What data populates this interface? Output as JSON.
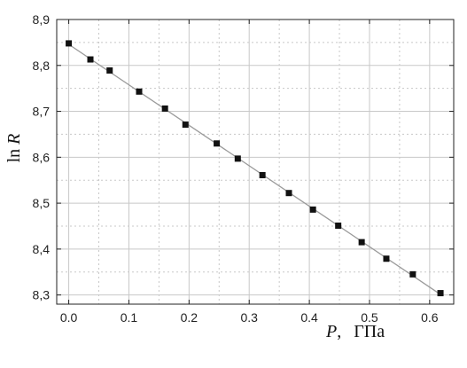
{
  "chart_data": {
    "type": "scatter",
    "title": "",
    "xlabel_var": "P",
    "xlabel_sep": ",",
    "xlabel_unit": "ГПа",
    "ylabel_prefix": "ln ",
    "ylabel_var": "R",
    "xlim": [
      -0.02,
      0.64
    ],
    "ylim": [
      8.28,
      8.9
    ],
    "x_ticks": [
      0.0,
      0.1,
      0.2,
      0.3,
      0.4,
      0.5,
      0.6
    ],
    "x_tick_labels": [
      "0.0",
      "0.1",
      "0.2",
      "0.3",
      "0.4",
      "0.5",
      "0.6"
    ],
    "y_ticks": [
      8.3,
      8.4,
      8.5,
      8.6,
      8.7,
      8.8,
      8.9
    ],
    "y_tick_labels": [
      "8,3",
      "8,4",
      "8,5",
      "8,6",
      "8,7",
      "8,8",
      "8,9"
    ],
    "grid": true,
    "fit_line": true,
    "series": [
      {
        "x": [
          0.0,
          0.036,
          0.068,
          0.117,
          0.16,
          0.194,
          0.246,
          0.281,
          0.322,
          0.366,
          0.406,
          0.448,
          0.487,
          0.528,
          0.572,
          0.618
        ],
        "y": [
          8.848,
          8.813,
          8.789,
          8.743,
          8.706,
          8.671,
          8.63,
          8.597,
          8.561,
          8.522,
          8.486,
          8.451,
          8.415,
          8.379,
          8.345,
          8.304
        ],
        "color": "#111111"
      }
    ],
    "fit_color": "#9a9a9a",
    "grid_color": "#c8c8c8"
  }
}
